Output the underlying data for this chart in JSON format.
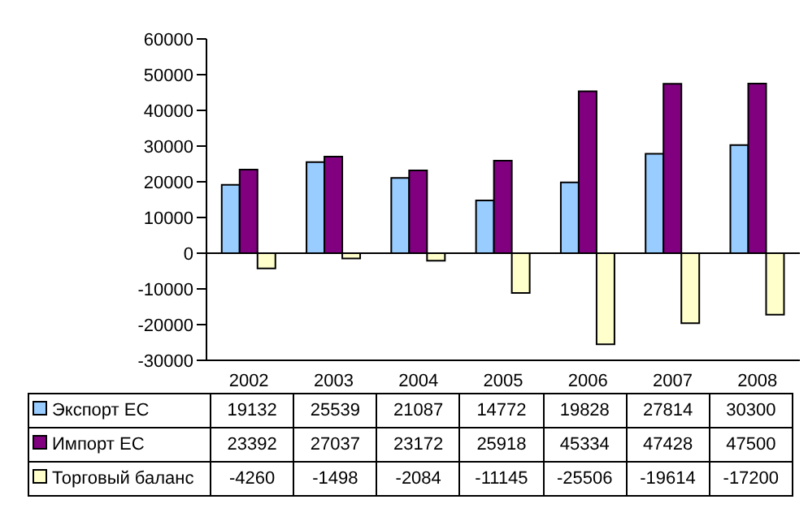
{
  "chart_data": {
    "type": "bar",
    "categories": [
      "2002",
      "2003",
      "2004",
      "2005",
      "2006",
      "2007",
      "2008"
    ],
    "series": [
      {
        "name": "Экспорт ЕС",
        "color": "#99ccff",
        "values": [
          19132,
          25539,
          21087,
          14772,
          19828,
          27814,
          30300
        ]
      },
      {
        "name": "Импорт ЕС",
        "color": "#800080",
        "values": [
          23392,
          27037,
          23172,
          25918,
          45334,
          47428,
          47500
        ]
      },
      {
        "name": "Торговый баланс",
        "color": "#ffffcc",
        "values": [
          -4260,
          -1498,
          -2084,
          -11145,
          -25506,
          -19614,
          -17200
        ]
      }
    ],
    "ylim": [
      -30000,
      60000
    ],
    "yticks": [
      -30000,
      -20000,
      -10000,
      0,
      10000,
      20000,
      30000,
      40000,
      50000,
      60000
    ],
    "legend": "bottom",
    "data_labels": true
  }
}
